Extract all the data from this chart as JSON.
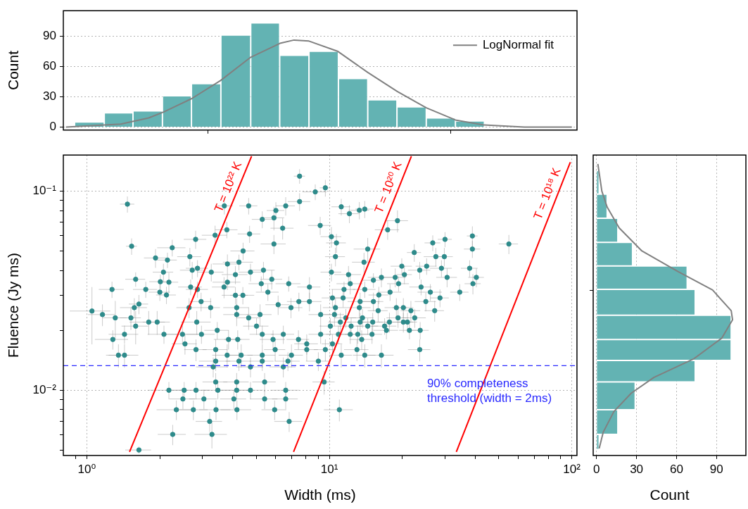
{
  "chart_data": [
    {
      "type": "histogram",
      "ylabel": "Count",
      "log": "x",
      "xlim": [
        0.8,
        105
      ],
      "xticks": [
        {
          "value": 1,
          "label": null
        },
        {
          "value": 10,
          "label": null
        },
        {
          "value": 100,
          "label": null
        }
      ],
      "ylim": [
        -3,
        115
      ],
      "yticks": [
        0,
        30,
        60,
        90
      ],
      "grid": "y",
      "tick_labels": "y",
      "legend": "top right",
      "series": [
        {
          "color": "#63b3b3",
          "bins": [
            0.89,
            1.18,
            1.55,
            2.05,
            2.7,
            3.57,
            4.74,
            6.24,
            8.24,
            10.9,
            14.4,
            19,
            25.1,
            33.1,
            43.6
          ],
          "values": [
            5,
            14,
            16,
            31,
            43,
            91,
            103,
            71,
            75,
            48,
            27,
            20,
            9,
            6
          ]
        },
        {
          "type": "line",
          "name": "LogNormal fit",
          "color": "#808080",
          "x": [
            0.82,
            1.38,
            1.8,
            2.08,
            2.7,
            3.56,
            4.74,
            6.3,
            7.15,
            8.24,
            10.8,
            14.4,
            19.1,
            25.1,
            33.1,
            43.5,
            63.7,
            100
          ],
          "values": [
            0,
            3,
            9,
            15,
            28,
            46,
            69,
            83,
            86,
            85,
            75,
            54,
            35,
            19,
            7,
            2,
            0,
            0
          ]
        }
      ]
    },
    {
      "type": "scatter",
      "xlabel": "Width (ms)",
      "ylabel": "Fluence (Jy ms)",
      "log": "xy",
      "xlim": [
        0.8,
        105
      ],
      "xticks": [
        {
          "value": 0.9,
          "label": null
        },
        {
          "value": 1,
          "label": "10⁰"
        },
        {
          "value": 2,
          "label": null
        },
        {
          "value": 3,
          "label": null
        },
        {
          "value": 4,
          "label": null
        },
        {
          "value": 5,
          "label": null
        },
        {
          "value": 6,
          "label": null
        },
        {
          "value": 7,
          "label": null
        },
        {
          "value": 8,
          "label": null
        },
        {
          "value": 9,
          "label": null
        },
        {
          "value": 10,
          "label": "10¹"
        },
        {
          "value": 20,
          "label": null
        },
        {
          "value": 30,
          "label": null
        },
        {
          "value": 40,
          "label": null
        },
        {
          "value": 50,
          "label": null
        },
        {
          "value": 60,
          "label": null
        },
        {
          "value": 70,
          "label": null
        },
        {
          "value": 80,
          "label": null
        },
        {
          "value": 90,
          "label": null
        },
        {
          "value": 100,
          "label": "10²"
        }
      ],
      "ylim": [
        0.0047,
        0.152
      ],
      "yticks": [
        {
          "value": 0.005,
          "label": null
        },
        {
          "value": 0.006,
          "label": null
        },
        {
          "value": 0.007,
          "label": null
        },
        {
          "value": 0.008,
          "label": null
        },
        {
          "value": 0.009,
          "label": null
        },
        {
          "value": 0.01,
          "label": "10⁻²"
        },
        {
          "value": 0.02,
          "label": null
        },
        {
          "value": 0.03,
          "label": null
        },
        {
          "value": 0.04,
          "label": null
        },
        {
          "value": 0.05,
          "label": null
        },
        {
          "value": 0.06,
          "label": null
        },
        {
          "value": 0.07,
          "label": null
        },
        {
          "value": 0.08,
          "label": null
        },
        {
          "value": 0.09,
          "label": null
        },
        {
          "value": 0.1,
          "label": "10⁻¹"
        }
      ],
      "grid": true,
      "ref_lines": [
        {
          "axis": "y",
          "value": 0.0133,
          "color": "#2a2aff",
          "line_style": "dashed"
        }
      ],
      "annotations": [
        "90% completeness threshold (width = 2ms)"
      ],
      "series": [
        {
          "color": "#2e8b8b",
          "marker": "circle",
          "x": [
            1.47,
            1.53,
            7.54,
            9.63,
            8.75,
            3.69,
            4.65,
            6.61,
            7.54,
            6.02,
            5.29,
            5.91,
            9.17,
            3.78,
            3.38,
            4.69,
            6.42,
            2.81,
            2.25,
            1.92,
            2.66,
            2.15,
            5.91,
            4.41,
            3.8,
            4.24,
            2.86,
            2.72,
            2.07,
            3.26,
            4.1,
            4.73,
            5.35,
            1.59,
            2.01,
            2.18,
            1.27,
            1.75,
            2,
            2.13,
            2.68,
            2.86,
            3.68,
            3.8,
            5.24,
            5.79,
            6.8,
            8.28,
            5.58,
            4.1,
            4.4,
            1.05,
            1.16,
            1.31,
            1.57,
            1.64,
            1.52,
            1.59,
            1.8,
            1.95,
            2.64,
            2.96,
            3.24,
            2.84,
            4.15,
            4.15,
            5.18,
            4.65,
            6.15,
            6.95,
            7.49,
            8.28,
            9.21,
            1.43,
            1.28,
            1.35,
            1.43,
            2.08,
            2.48,
            2.54,
            2.97,
            3.45,
            2.82,
            3.84,
            4.19,
            5.01,
            5.29,
            5.86,
            6.46,
            7.46,
            8.07,
            9.21,
            3.4,
            3.79,
            4.33,
            5.29,
            5.98,
            6.98,
            8.07,
            3.4,
            4.24,
            5.29,
            6.75,
            9.01,
            3.32,
            4.73,
            6.46,
            3.4,
            4.15,
            5.41,
            2.18,
            2.52,
            2.82,
            3.47,
            4.15,
            4.73,
            6.61,
            2.49,
            3.04,
            4.04,
            5.41,
            6.61,
            2.34,
            2.75,
            3.41,
            4.16,
            5.95,
            3.21,
            6.83,
            2.26,
            3.28,
            1.64,
            11.2,
            12.1,
            13.3,
            14,
            19.1,
            17.4,
            10.2,
            10.7,
            14.4,
            10.6,
            13.9,
            22.4,
            26.7,
            30,
            38.9,
            55,
            38.9,
            27.5,
            29.8,
            19.9,
            25.2,
            29,
            37.9,
            10.2,
            12,
            16.4,
            18.7,
            20.4,
            23.6,
            30.6,
            40.4,
            12.2,
            15.2,
            19.3,
            23.9,
            39.1,
            11.5,
            14,
            17.8,
            26.1,
            34.5,
            28.6,
            10.3,
            11.4,
            13.4,
            15.2,
            16,
            25,
            10.6,
            13.3,
            15.9,
            18.9,
            20.2,
            21.7,
            27.2,
            10.5,
            11.7,
            13.7,
            19.2,
            22.5,
            11.1,
            13.4,
            15.1,
            17.7,
            20.2,
            21,
            10.1,
            12.3,
            14.4,
            16.9,
            17.2,
            21.4,
            23.7,
            10.9,
            12.2,
            13.1,
            15,
            10.3,
            13.6,
            9.63,
            11.2,
            13,
            14,
            16.4,
            23.6,
            9.52,
            11
          ],
          "values": [
            0.0861,
            0.0529,
            0.119,
            0.104,
            0.0992,
            0.0844,
            0.0844,
            0.0844,
            0.0887,
            0.08,
            0.0722,
            0.0735,
            0.0673,
            0.064,
            0.0601,
            0.061,
            0.0652,
            0.0573,
            0.052,
            0.0462,
            0.0469,
            0.0451,
            0.0543,
            0.0501,
            0.0431,
            0.044,
            0.041,
            0.0401,
            0.0392,
            0.0392,
            0.0381,
            0.0392,
            0.0401,
            0.0361,
            0.0351,
            0.0349,
            0.0321,
            0.0321,
            0.0311,
            0.0301,
            0.033,
            0.0321,
            0.033,
            0.0349,
            0.0343,
            0.0361,
            0.0343,
            0.033,
            0.0311,
            0.03,
            0.03,
            0.025,
            0.024,
            0.0231,
            0.026,
            0.0271,
            0.0231,
            0.021,
            0.022,
            0.022,
            0.026,
            0.0279,
            0.026,
            0.022,
            0.026,
            0.024,
            0.024,
            0.0231,
            0.0269,
            0.026,
            0.0279,
            0.0279,
            0.024,
            0.0191,
            0.018,
            0.015,
            0.015,
            0.0191,
            0.0191,
            0.0171,
            0.0191,
            0.02,
            0.016,
            0.018,
            0.018,
            0.021,
            0.0191,
            0.018,
            0.0191,
            0.018,
            0.0171,
            0.0191,
            0.016,
            0.015,
            0.015,
            0.015,
            0.016,
            0.015,
            0.016,
            0.014,
            0.014,
            0.014,
            0.014,
            0.014,
            0.0131,
            0.0131,
            0.0131,
            0.011,
            0.011,
            0.011,
            0.01,
            0.01,
            0.01,
            0.01,
            0.01,
            0.01,
            0.01,
            0.00904,
            0.00904,
            0.00904,
            0.00904,
            0.00904,
            0.00798,
            0.00798,
            0.00798,
            0.00798,
            0.00798,
            0.00697,
            0.00697,
            0.006,
            0.006,
            0.00501,
            0.0835,
            0.0771,
            0.0802,
            0.0813,
            0.0711,
            0.064,
            0.0591,
            0.055,
            0.0512,
            0.0469,
            0.044,
            0.0492,
            0.055,
            0.0573,
            0.0596,
            0.0543,
            0.0512,
            0.0469,
            0.0469,
            0.042,
            0.042,
            0.041,
            0.041,
            0.0392,
            0.0381,
            0.0369,
            0.0369,
            0.0381,
            0.0401,
            0.0369,
            0.0369,
            0.0343,
            0.0357,
            0.0343,
            0.033,
            0.0343,
            0.0321,
            0.0321,
            0.0311,
            0.0311,
            0.0311,
            0.0291,
            0.0291,
            0.0291,
            0.0279,
            0.0279,
            0.0301,
            0.0279,
            0.026,
            0.026,
            0.0251,
            0.026,
            0.026,
            0.0251,
            0.0251,
            0.024,
            0.0231,
            0.0231,
            0.0231,
            0.0231,
            0.022,
            0.022,
            0.022,
            0.022,
            0.022,
            0.022,
            0.021,
            0.021,
            0.021,
            0.021,
            0.02,
            0.02,
            0.02,
            0.0191,
            0.0191,
            0.0191,
            0.0191,
            0.0171,
            0.018,
            0.016,
            0.015,
            0.016,
            0.015,
            0.015,
            0.016,
            0.011,
            0.00798
          ],
          "xerrors": [
            0.1,
            0.08,
            0.4,
            0.5,
            1,
            0.3,
            0.4,
            0.6,
            0.8,
            0.5,
            0.5,
            0.6,
            1,
            0.4,
            0.4,
            0.5,
            0.7,
            0.3,
            0.3,
            0.2,
            0.3,
            0.2,
            0.7,
            0.5,
            0.5,
            0.6,
            0.3,
            0.3,
            0.2,
            0.4,
            0.5,
            0.5,
            0.6,
            0.15,
            0.2,
            0.2,
            0.15,
            0.2,
            0.2,
            0.2,
            0.3,
            0.3,
            0.4,
            0.5,
            0.6,
            0.6,
            0.8,
            0.9,
            0.6,
            0.5,
            0.5,
            0.2,
            0.15,
            0.15,
            0.2,
            0.15,
            0.15,
            0.2,
            0.3,
            0.25,
            0.3,
            0.3,
            0.3,
            0.4,
            0.5,
            0.5,
            0.6,
            0.5,
            0.7,
            0.8,
            0.8,
            1,
            1,
            0.2,
            0.2,
            0.15,
            0.2,
            0.3,
            0.4,
            0.3,
            0.4,
            0.4,
            0.3,
            0.5,
            0.5,
            0.6,
            0.6,
            0.7,
            0.7,
            0.8,
            0.9,
            1,
            0.4,
            0.5,
            0.5,
            0.7,
            0.6,
            0.8,
            0.9,
            0.5,
            0.5,
            0.6,
            0.8,
            1,
            0.5,
            0.6,
            0.8,
            0.4,
            0.5,
            0.6,
            0.4,
            0.4,
            0.4,
            0.5,
            0.6,
            0.6,
            0.9,
            0.3,
            0.4,
            0.5,
            0.7,
            0.8,
            0.4,
            0.4,
            0.5,
            0.6,
            0.7,
            0.4,
            0.9,
            0.3,
            0.5,
            0.2,
            1,
            1.2,
            1.3,
            1.2,
            2,
            2,
            1,
            1,
            1.8,
            1,
            1.5,
            1.5,
            2,
            2,
            2,
            5,
            3,
            3,
            2.5,
            2,
            2.5,
            3,
            3,
            1,
            1.5,
            2,
            2,
            1.5,
            2.5,
            3,
            3,
            1.5,
            1.5,
            2,
            2.5,
            3,
            1.3,
            1.5,
            2,
            3,
            3,
            2.5,
            1,
            1.2,
            1.5,
            1.5,
            1.5,
            2.5,
            1.2,
            1.5,
            1.5,
            2,
            2,
            2,
            2.5,
            1,
            1.2,
            1.5,
            2,
            2.5,
            1.2,
            1.5,
            1.5,
            2,
            2,
            2,
            1,
            1.3,
            1.5,
            2,
            2,
            2,
            2,
            1.2,
            1.2,
            1.5,
            1.5,
            1,
            1.5,
            1,
            1.2,
            1.5,
            1.5,
            2,
            2.5,
            1,
            1.5
          ],
          "errors": [
            0.008,
            0.005,
            0.01,
            0.01,
            0.009,
            0.008,
            0.008,
            0.009,
            0.009,
            0.008,
            0.007,
            0.01,
            0.007,
            0.006,
            0.007,
            0.006,
            0.008,
            0.006,
            0.005,
            0.005,
            0.005,
            0.004,
            0.006,
            0.005,
            0.005,
            0.004,
            0.004,
            0.004,
            0.004,
            0.004,
            0.004,
            0.004,
            0.004,
            0.003,
            0.003,
            0.004,
            0.003,
            0.003,
            0.003,
            0.003,
            0.003,
            0.003,
            0.004,
            0.003,
            0.003,
            0.004,
            0.003,
            0.004,
            0.003,
            0.003,
            0.003,
            0.008,
            0.003,
            0.005,
            0.003,
            0.003,
            0.003,
            0.004,
            0.003,
            0.003,
            0.003,
            0.003,
            0.003,
            0.003,
            0.003,
            0.003,
            0.003,
            0.003,
            0.003,
            0.003,
            0.003,
            0.003,
            0.003,
            0.002,
            0.002,
            0.002,
            0.002,
            0.002,
            0.002,
            0.002,
            0.002,
            0.002,
            0.002,
            0.002,
            0.002,
            0.002,
            0.002,
            0.002,
            0.002,
            0.002,
            0.002,
            0.002,
            0.002,
            0.002,
            0.002,
            0.002,
            0.002,
            0.002,
            0.002,
            0.0015,
            0.0015,
            0.0015,
            0.0015,
            0.0015,
            0.0015,
            0.0015,
            0.0015,
            0.0012,
            0.0012,
            0.0012,
            0.001,
            0.001,
            0.001,
            0.001,
            0.001,
            0.001,
            0.001,
            0.001,
            0.001,
            0.001,
            0.001,
            0.001,
            0.0009,
            0.0009,
            0.0009,
            0.0009,
            0.0009,
            0.0008,
            0.0008,
            0.0007,
            0.0009,
            0.0002,
            0.008,
            0.008,
            0.008,
            0.008,
            0.009,
            0.007,
            0.007,
            0.006,
            0.007,
            0.005,
            0.005,
            0.005,
            0.005,
            0.005,
            0.007,
            0.006,
            0.005,
            0.005,
            0.005,
            0.004,
            0.004,
            0.004,
            0.004,
            0.004,
            0.004,
            0.004,
            0.004,
            0.004,
            0.004,
            0.004,
            0.004,
            0.004,
            0.003,
            0.003,
            0.003,
            0.004,
            0.003,
            0.003,
            0.003,
            0.003,
            0.003,
            0.003,
            0.003,
            0.003,
            0.003,
            0.003,
            0.003,
            0.003,
            0.003,
            0.003,
            0.003,
            0.003,
            0.003,
            0.003,
            0.003,
            0.003,
            0.0025,
            0.0025,
            0.0025,
            0.0025,
            0.0025,
            0.0025,
            0.0025,
            0.0025,
            0.0025,
            0.0025,
            0.002,
            0.002,
            0.002,
            0.002,
            0.002,
            0.002,
            0.002,
            0.002,
            0.002,
            0.002,
            0.002,
            0.002,
            0.002,
            0.002,
            0.002,
            0.002,
            0.002,
            0.002,
            0.002,
            0.0015,
            0.001
          ]
        },
        {
          "type": "line",
          "name": "T = 10²² K",
          "color": "#ff0000",
          "x": [
            1.5,
            4.78
          ],
          "values": [
            0.0049,
            0.15
          ]
        },
        {
          "type": "line",
          "name": "T = 10²⁰ K",
          "color": "#ff0000",
          "x": [
            7.12,
            21.8
          ],
          "values": [
            0.0049,
            0.15
          ]
        },
        {
          "type": "line",
          "name": "T = 10¹⁸ K",
          "color": "#ff0000",
          "x": [
            33.4,
            98.6
          ],
          "values": [
            0.0049,
            0.14
          ]
        }
      ]
    },
    {
      "type": "histogram",
      "orientation": "horizontal",
      "xlabel": "Count",
      "log": "y",
      "xlim": [
        -2.5,
        112
      ],
      "xticks": [
        0,
        30,
        60,
        90
      ],
      "ylim": [
        0.0047,
        0.152
      ],
      "yticks": [
        {
          "value": 0.01,
          "label": null
        },
        {
          "value": 0.1,
          "label": null
        }
      ],
      "grid": "x",
      "tick_labels": "x",
      "series": [
        {
          "color": "#63b3b3",
          "bins": [
            0.00504,
            0.006,
            0.00798,
            0.011,
            0.0141,
            0.018,
            0.0238,
            0.0321,
            0.0421,
            0.0553,
            0.0731,
            0.0966,
            0.127
          ],
          "values": [
            2,
            16,
            29,
            74,
            101,
            101,
            74,
            68,
            27,
            16,
            8,
            2
          ]
        },
        {
          "type": "line",
          "color": "#808080",
          "x": [
            0.137,
            0.1,
            0.0831,
            0.0654,
            0.0501,
            0.0395,
            0.0319,
            0.0251,
            0.0226,
            0.0183,
            0.0144,
            0.0116,
            0.00966,
            0.00781,
            0.00615,
            0.0051
          ],
          "values": [
            1,
            4,
            8,
            17,
            34,
            61,
            87,
            101,
            102,
            94,
            73,
            43,
            26,
            13,
            5,
            2
          ]
        }
      ]
    }
  ]
}
